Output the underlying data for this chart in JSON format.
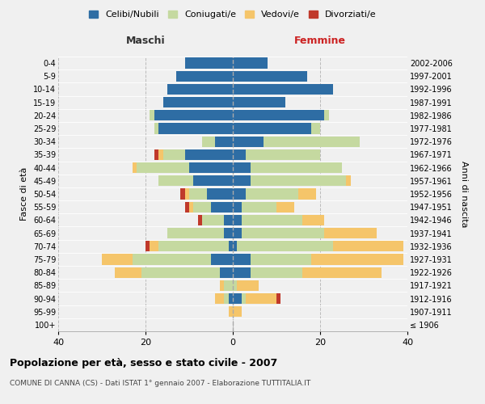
{
  "age_groups": [
    "100+",
    "95-99",
    "90-94",
    "85-89",
    "80-84",
    "75-79",
    "70-74",
    "65-69",
    "60-64",
    "55-59",
    "50-54",
    "45-49",
    "40-44",
    "35-39",
    "30-34",
    "25-29",
    "20-24",
    "15-19",
    "10-14",
    "5-9",
    "0-4"
  ],
  "birth_years": [
    "≤ 1906",
    "1907-1911",
    "1912-1916",
    "1917-1921",
    "1922-1926",
    "1927-1931",
    "1932-1936",
    "1937-1941",
    "1942-1946",
    "1947-1951",
    "1952-1956",
    "1957-1961",
    "1962-1966",
    "1967-1971",
    "1972-1976",
    "1977-1981",
    "1982-1986",
    "1987-1991",
    "1992-1996",
    "1997-2001",
    "2002-2006"
  ],
  "maschi": {
    "celibi": [
      0,
      0,
      1,
      0,
      3,
      5,
      1,
      2,
      2,
      5,
      6,
      9,
      10,
      11,
      4,
      17,
      18,
      16,
      15,
      13,
      11
    ],
    "coniugati": [
      0,
      0,
      1,
      2,
      18,
      18,
      16,
      13,
      5,
      4,
      4,
      8,
      12,
      5,
      3,
      1,
      1,
      0,
      0,
      0,
      0
    ],
    "vedovi": [
      0,
      1,
      2,
      1,
      6,
      7,
      2,
      0,
      0,
      1,
      1,
      0,
      1,
      1,
      0,
      0,
      0,
      0,
      0,
      0,
      0
    ],
    "divorziati": [
      0,
      0,
      0,
      0,
      0,
      0,
      1,
      0,
      1,
      1,
      1,
      0,
      0,
      1,
      0,
      0,
      0,
      0,
      0,
      0,
      0
    ]
  },
  "femmine": {
    "nubili": [
      0,
      0,
      2,
      0,
      4,
      4,
      1,
      2,
      2,
      2,
      3,
      4,
      4,
      3,
      7,
      18,
      21,
      12,
      23,
      17,
      8
    ],
    "coniugate": [
      0,
      0,
      1,
      1,
      12,
      14,
      22,
      19,
      14,
      8,
      12,
      22,
      21,
      17,
      22,
      2,
      1,
      0,
      0,
      0,
      0
    ],
    "vedove": [
      0,
      2,
      7,
      5,
      18,
      21,
      16,
      12,
      5,
      4,
      4,
      1,
      0,
      0,
      0,
      0,
      0,
      0,
      0,
      0,
      0
    ],
    "divorziate": [
      0,
      0,
      1,
      0,
      0,
      0,
      0,
      0,
      0,
      0,
      0,
      0,
      0,
      0,
      0,
      0,
      0,
      0,
      0,
      0,
      0
    ]
  },
  "colors": {
    "celibi": "#2E6DA4",
    "coniugati": "#C5D9A0",
    "vedovi": "#F5C56A",
    "divorziati": "#C0392B"
  },
  "legend_labels": [
    "Celibi/Nubili",
    "Coniugati/e",
    "Vedovi/e",
    "Divorziati/e"
  ],
  "title": "Popolazione per età, sesso e stato civile - 2007",
  "subtitle": "COMUNE DI CANNA (CS) - Dati ISTAT 1° gennaio 2007 - Elaborazione TUTTITALIA.IT",
  "xlabel_left": "Maschi",
  "xlabel_right": "Femmine",
  "ylabel_left": "Fasce di età",
  "ylabel_right": "Anni di nascita",
  "xlim": 40,
  "bg_color": "#f0f0f0",
  "plot_bg": "#f0f0f0"
}
